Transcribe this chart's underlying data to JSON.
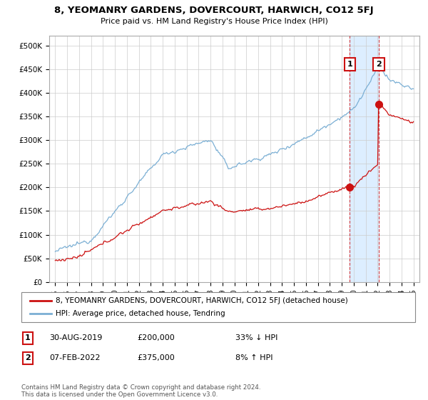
{
  "title": "8, YEOMANRY GARDENS, DOVERCOURT, HARWICH, CO12 5FJ",
  "subtitle": "Price paid vs. HM Land Registry's House Price Index (HPI)",
  "bg_color": "#ffffff",
  "plot_bg_color": "#ffffff",
  "grid_color": "#cccccc",
  "hpi_color": "#7bafd4",
  "hpi_fill_color": "#ddeeff",
  "price_color": "#cc1111",
  "dashed_color": "#cc1111",
  "sale1_date_x": 2019.67,
  "sale1_price": 200000,
  "sale2_date_x": 2022.1,
  "sale2_price": 375000,
  "ylim_min": 0,
  "ylim_max": 520000,
  "xlim_min": 1994.5,
  "xlim_max": 2025.5,
  "yticks": [
    0,
    50000,
    100000,
    150000,
    200000,
    250000,
    300000,
    350000,
    400000,
    450000,
    500000
  ],
  "ytick_labels": [
    "£0",
    "£50K",
    "£100K",
    "£150K",
    "£200K",
    "£250K",
    "£300K",
    "£350K",
    "£400K",
    "£450K",
    "£500K"
  ],
  "xticks": [
    1995,
    1996,
    1997,
    1998,
    1999,
    2000,
    2001,
    2002,
    2003,
    2004,
    2005,
    2006,
    2007,
    2008,
    2009,
    2010,
    2011,
    2012,
    2013,
    2014,
    2015,
    2016,
    2017,
    2018,
    2019,
    2020,
    2021,
    2022,
    2023,
    2024,
    2025
  ],
  "legend_label_price": "8, YEOMANRY GARDENS, DOVERCOURT, HARWICH, CO12 5FJ (detached house)",
  "legend_label_hpi": "HPI: Average price, detached house, Tendring",
  "annotation1_text1": "30-AUG-2019",
  "annotation1_text2": "£200,000",
  "annotation1_text3": "33% ↓ HPI",
  "annotation2_text1": "07-FEB-2022",
  "annotation2_text2": "£375,000",
  "annotation2_text3": "8% ↑ HPI",
  "footer": "Contains HM Land Registry data © Crown copyright and database right 2024.\nThis data is licensed under the Open Government Licence v3.0."
}
